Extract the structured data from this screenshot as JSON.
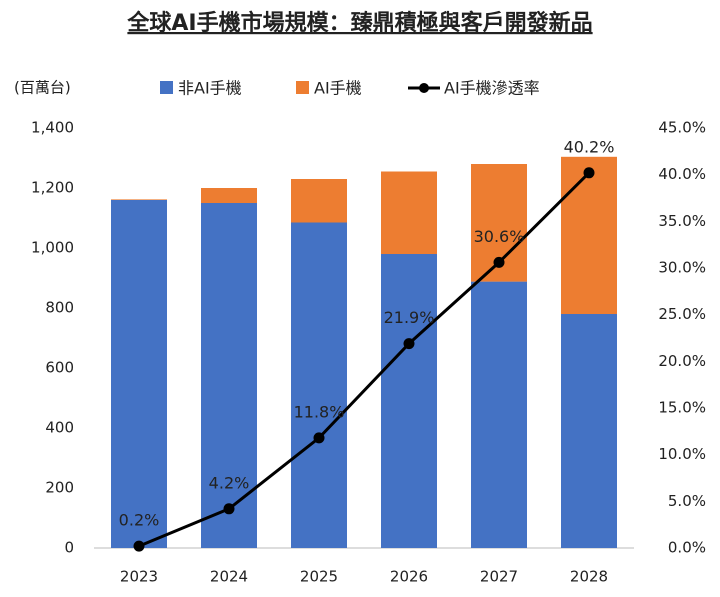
{
  "chart_data": {
    "type": "bar",
    "stacked": true,
    "title": "全球AI手機市場規模：臻鼎積極與客戶開發新品",
    "y_label": "(百萬台)",
    "categories": [
      "2023",
      "2024",
      "2025",
      "2026",
      "2027",
      "2028"
    ],
    "series": [
      {
        "name": "非AI手機",
        "color": "#4472c4",
        "type": "bar",
        "values": [
          1160,
          1150,
          1085,
          980,
          888,
          780
        ]
      },
      {
        "name": "AI手機",
        "color": "#ed7d31",
        "type": "bar",
        "values": [
          2,
          50,
          145,
          275,
          392,
          524
        ]
      },
      {
        "name": "AI手機滲透率",
        "color": "#000000",
        "type": "line",
        "axis": "y2",
        "values": [
          0.2,
          4.2,
          11.8,
          21.9,
          30.6,
          40.2
        ],
        "value_labels": [
          "0.2%",
          "4.2%",
          "11.8%",
          "21.9%",
          "30.6%",
          "40.2%"
        ]
      }
    ],
    "ylim": [
      0,
      1400
    ],
    "yticks": [
      0,
      200,
      400,
      600,
      800,
      {
        "value": 1000,
        "label": "1,000"
      },
      {
        "value": 1200,
        "label": "1,200"
      },
      {
        "value": 1400,
        "label": "1,400"
      }
    ],
    "y2lim": [
      0,
      45
    ],
    "y2ticks": [
      {
        "value": 0,
        "label": "0.0%"
      },
      {
        "value": 5,
        "label": "5.0%"
      },
      {
        "value": 10,
        "label": "10.0%"
      },
      {
        "value": 15,
        "label": "15.0%"
      },
      {
        "value": 20,
        "label": "20.0%"
      },
      {
        "value": 25,
        "label": "25.0%"
      },
      {
        "value": 30,
        "label": "30.0%"
      },
      {
        "value": 35,
        "label": "35.0%"
      },
      {
        "value": 40,
        "label": "40.0%"
      },
      {
        "value": 45,
        "label": "45.0%"
      }
    ],
    "grid": false,
    "legend": "top"
  }
}
